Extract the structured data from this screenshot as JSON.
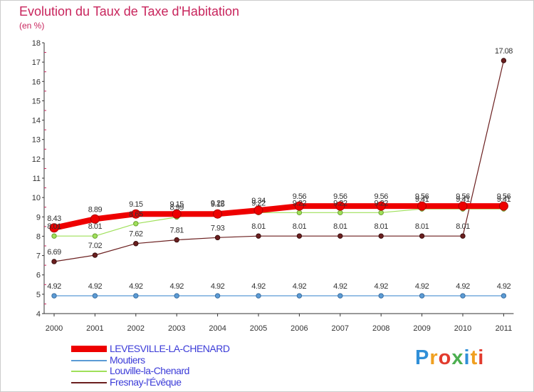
{
  "title": "Evolution du Taux de Taxe d'Habitation",
  "unit_label": "(en %)",
  "chart_data": {
    "type": "line",
    "title": "Evolution du Taux de Taxe d'Habitation",
    "ylabel": "(en %)",
    "xlabel": "",
    "x": [
      "2000",
      "2001",
      "2002",
      "2003",
      "2004",
      "2005",
      "2006",
      "2007",
      "2008",
      "2009",
      "2010",
      "2011"
    ],
    "y_ticks": [
      "4",
      "5",
      "6",
      "7",
      "8",
      "9",
      "10",
      "11",
      "12",
      "13",
      "14",
      "15",
      "16",
      "17",
      "18"
    ],
    "ylim": [
      4,
      18
    ],
    "grid": false,
    "legend_position": "bottom-left",
    "series": [
      {
        "name": "LEVESVILLE-LA-CHENARD",
        "color": "#ee0000",
        "values": [
          8.43,
          8.89,
          9.15,
          9.15,
          9.15,
          9.34,
          9.56,
          9.56,
          9.56,
          9.56,
          9.56,
          9.56
        ],
        "labels": [
          "8.43",
          "8.89",
          "9.15",
          "9.15",
          "9.15",
          "9.34",
          "9.56",
          "9.56",
          "9.56",
          "9.56",
          "9.56",
          "9.56"
        ]
      },
      {
        "name": "Moutiers",
        "color": "#5b9bd5",
        "values": [
          4.92,
          4.92,
          4.92,
          4.92,
          4.92,
          4.92,
          4.92,
          4.92,
          4.92,
          4.92,
          4.92,
          4.92
        ],
        "labels": [
          "4.92",
          "4.92",
          "4.92",
          "4.92",
          "4.92",
          "4.92",
          "4.92",
          "4.92",
          "4.92",
          "4.92",
          "4.92",
          "4.92"
        ]
      },
      {
        "name": "Louville-la-Chenard",
        "color": "#9fe05a",
        "values": [
          8.01,
          8.01,
          8.65,
          8.99,
          9.22,
          9.22,
          9.22,
          9.22,
          9.22,
          9.41,
          9.41,
          9.41
        ],
        "labels": [
          "8.01",
          "8.01",
          "8.65",
          "8.99",
          "9.22",
          "9.22",
          "9.22",
          "9.22",
          "9.22",
          "9.41",
          "9.41",
          "9.41"
        ]
      },
      {
        "name": "Fresnay-l'Évêque",
        "color": "#6b1f1f",
        "values": [
          6.69,
          7.02,
          7.62,
          7.81,
          7.93,
          8.01,
          8.01,
          8.01,
          8.01,
          8.01,
          8.01,
          17.08
        ],
        "labels": [
          "6.69",
          "7.02",
          "7.62",
          "7.81",
          "7.93",
          "8.01",
          "8.01",
          "8.01",
          "8.01",
          "8.01",
          "8.01",
          "17.08"
        ]
      }
    ]
  },
  "legend": {
    "items": [
      {
        "label": "LEVESVILLE-LA-CHENARD",
        "color": "#ee0000"
      },
      {
        "label": "Moutiers",
        "color": "#5b9bd5"
      },
      {
        "label": "Louville-la-Chenard",
        "color": "#9fe05a"
      },
      {
        "label": "Fresnay-l'Évêque",
        "color": "#6b1f1f"
      }
    ]
  },
  "logo": {
    "text": "Proxiti",
    "colors": [
      "#2f8fd8",
      "#f0a020",
      "#e23b2e",
      "#4caf50",
      "#2f8fd8",
      "#f0a020",
      "#e23b2e"
    ]
  }
}
